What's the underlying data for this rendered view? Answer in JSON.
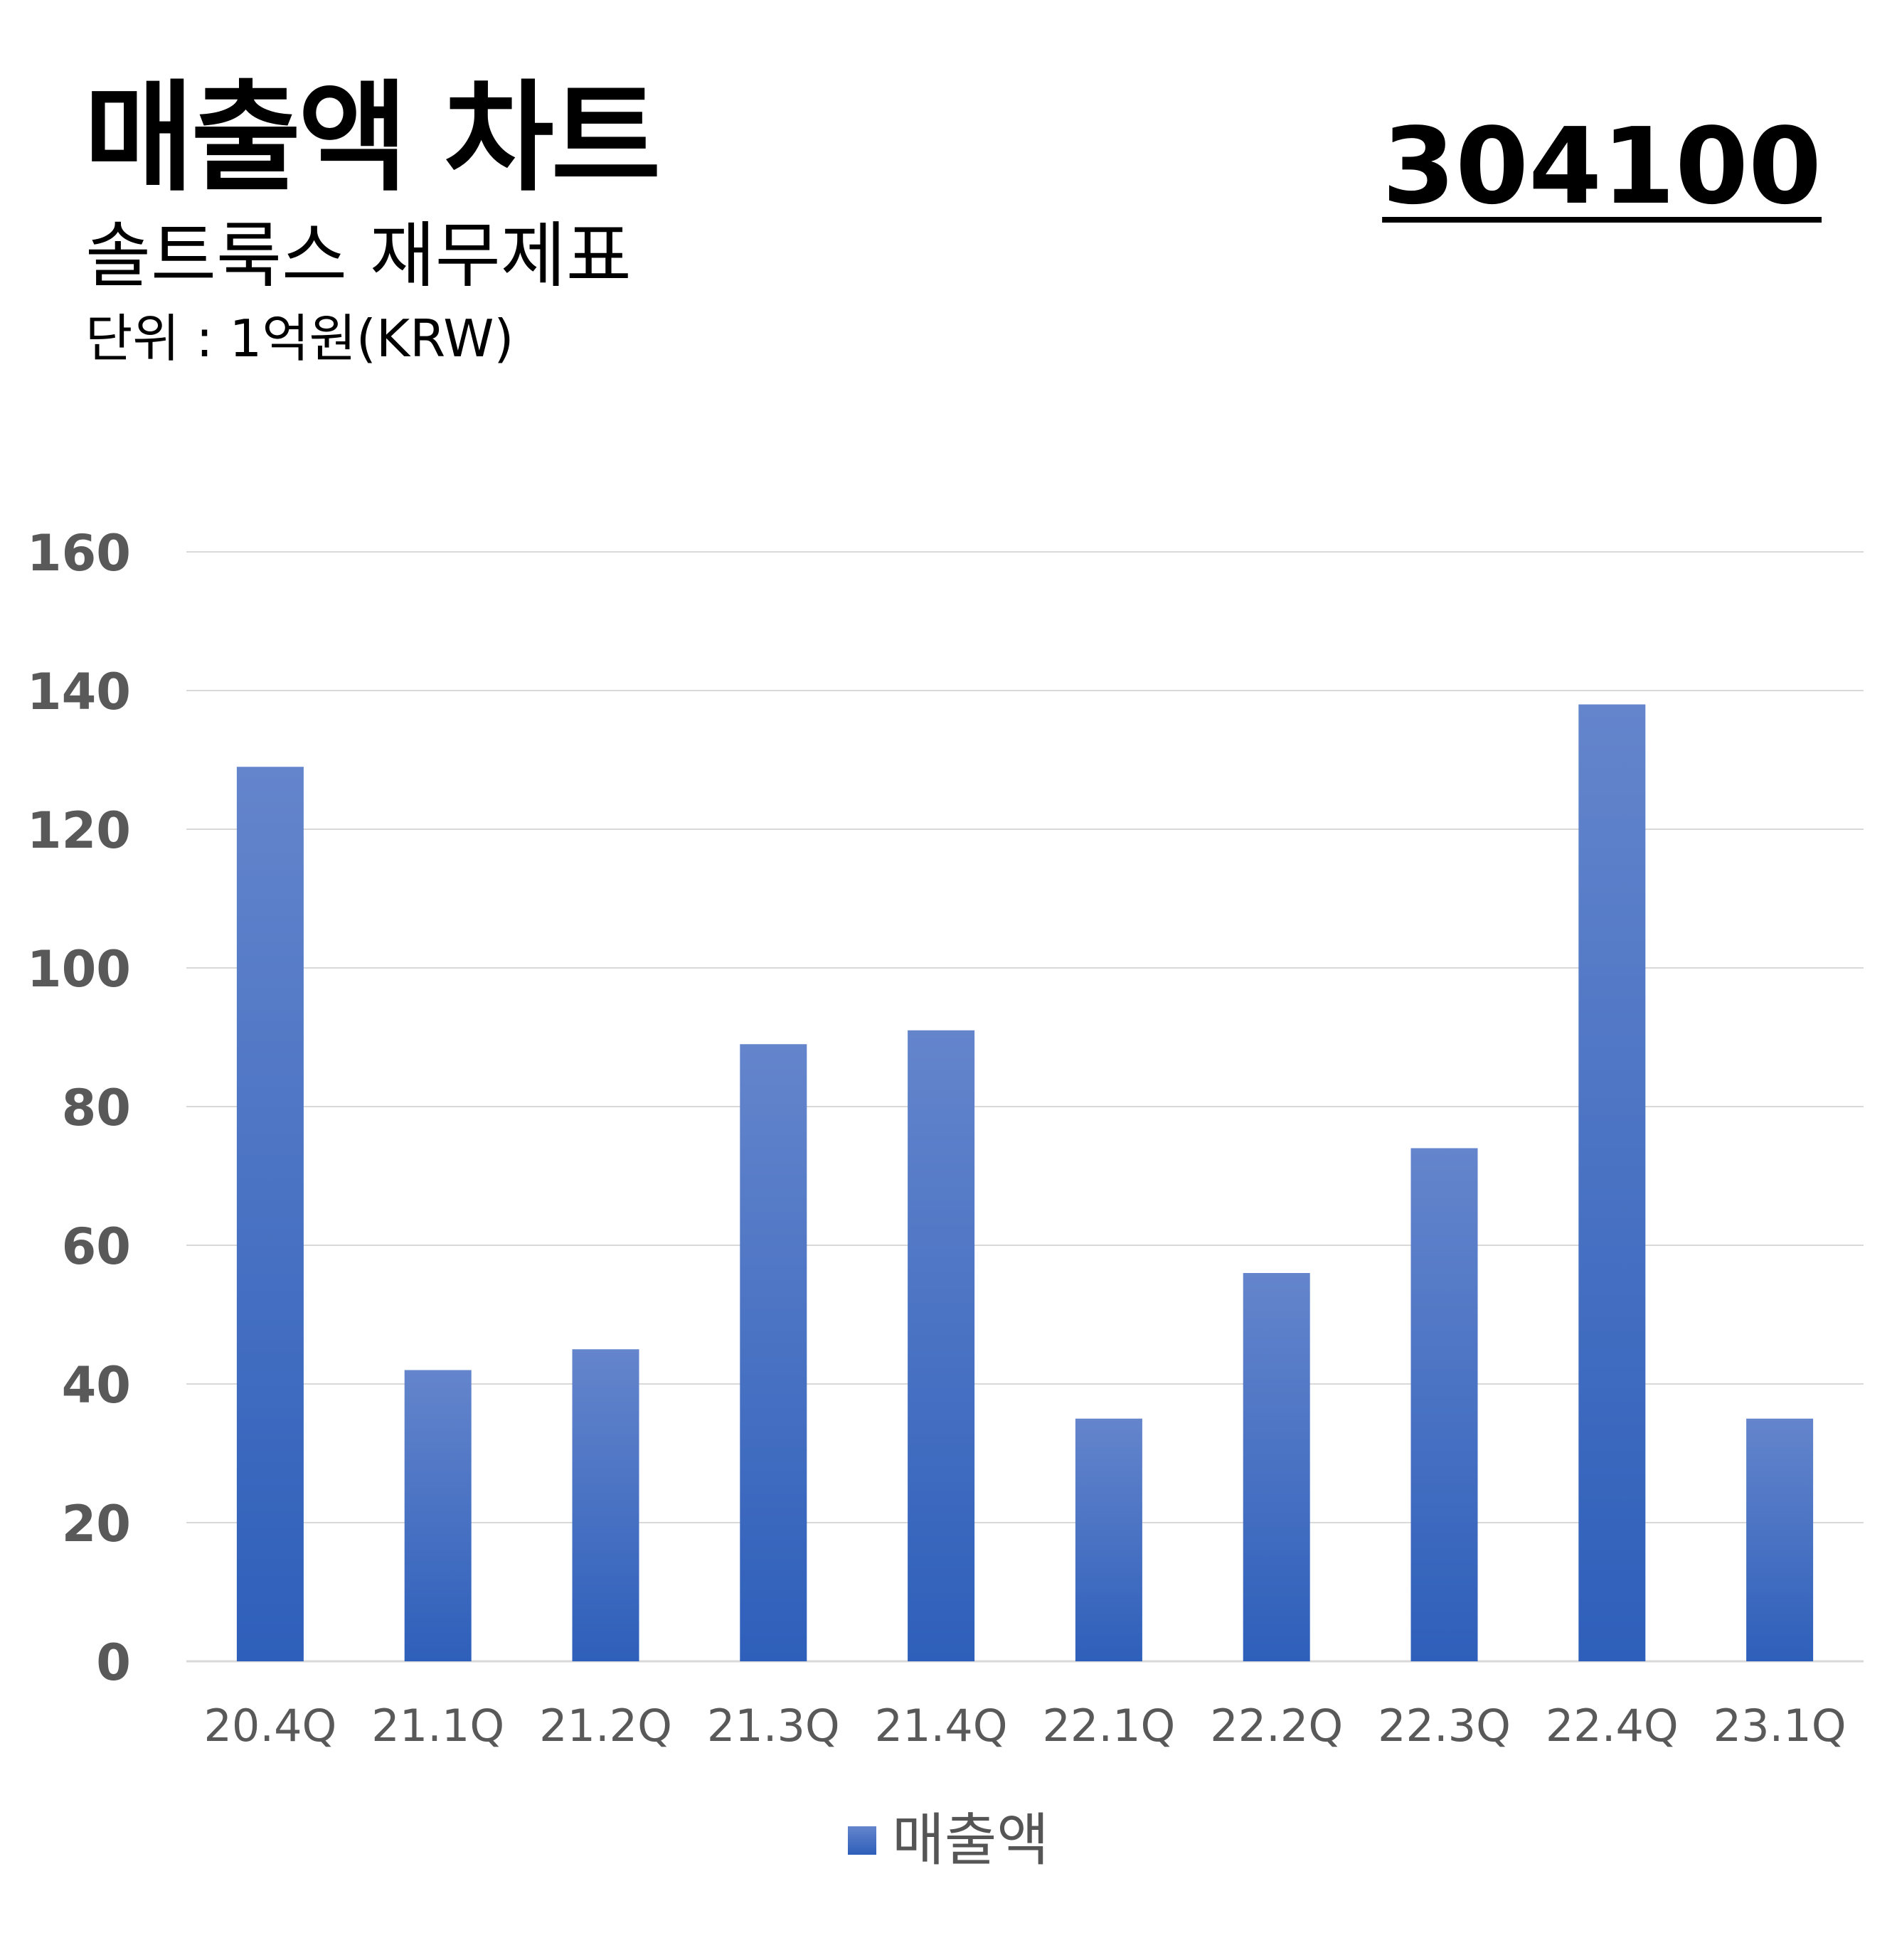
{
  "header": {
    "title": "매출액 차트",
    "subtitle": "솔트룩스 재무제표",
    "unit": "단위 : 1억원(KRW)",
    "stock_code": "304100"
  },
  "colors": {
    "bar_top": "#6485cc",
    "bar_bottom": "#2e5fba",
    "grid": "#d9d9d9",
    "axis_text": "#595959"
  },
  "chart_data": {
    "type": "bar",
    "categories": [
      "20.4Q",
      "21.1Q",
      "21.2Q",
      "21.3Q",
      "21.4Q",
      "22.1Q",
      "22.2Q",
      "22.3Q",
      "22.4Q",
      "23.1Q"
    ],
    "series": [
      {
        "name": "매출액",
        "values": [
          129,
          42,
          45,
          89,
          91,
          35,
          56,
          74,
          138,
          35
        ]
      }
    ],
    "yticks": [
      0,
      20,
      40,
      60,
      80,
      100,
      120,
      140,
      160
    ],
    "ylim": [
      0,
      160
    ],
    "grid": true,
    "legend": "bottom-center"
  }
}
